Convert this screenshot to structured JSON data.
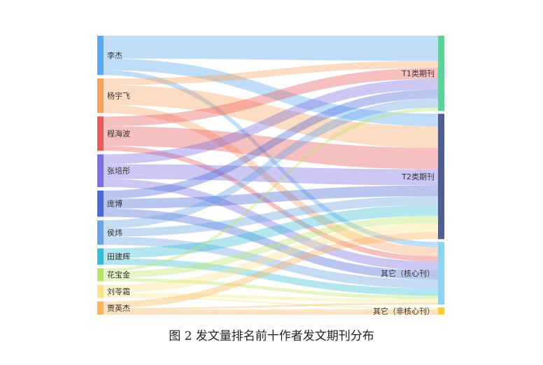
{
  "caption": "图 2  发文量排名前十作者发文期刊分布",
  "chart_data": {
    "type": "sankey",
    "sources": [
      {
        "name": "李杰",
        "color": "#5aa9f0"
      },
      {
        "name": "杨宇飞",
        "color": "#f6a25e"
      },
      {
        "name": "程海波",
        "color": "#ea5a5a"
      },
      {
        "name": "张培彤",
        "color": "#7a6ee0"
      },
      {
        "name": "庞博",
        "color": "#4a68d8"
      },
      {
        "name": "侯炜",
        "color": "#6aa2e6"
      },
      {
        "name": "田建辉",
        "color": "#36bcd6"
      },
      {
        "name": "花宝金",
        "color": "#bde46a"
      },
      {
        "name": "刘苓霜",
        "color": "#fbe48a"
      },
      {
        "name": "贾英杰",
        "color": "#fbb45a"
      }
    ],
    "targets": [
      {
        "name": "T1类期刊",
        "color": "#5ed19a"
      },
      {
        "name": "T2类期刊",
        "color": "#4f5e8e"
      },
      {
        "name": "其它（核心刊）",
        "color": "#8fd3f0"
      },
      {
        "name": "其它（非核心刊）",
        "color": "#fbcb3a"
      }
    ],
    "links": [
      {
        "source": "李杰",
        "target": "T1类期刊",
        "value": 14
      },
      {
        "source": "李杰",
        "target": "T2类期刊",
        "value": 7
      },
      {
        "source": "李杰",
        "target": "其它（核心刊）",
        "value": 3
      },
      {
        "source": "杨宇飞",
        "target": "T1类期刊",
        "value": 4
      },
      {
        "source": "杨宇飞",
        "target": "T2类期刊",
        "value": 12
      },
      {
        "source": "杨宇飞",
        "target": "其它（核心刊）",
        "value": 5
      },
      {
        "source": "程海波",
        "target": "T1类期刊",
        "value": 6
      },
      {
        "source": "程海波",
        "target": "T2类期刊",
        "value": 12
      },
      {
        "source": "程海波",
        "target": "其它（核心刊）",
        "value": 3
      },
      {
        "source": "张培彤",
        "target": "T1类期刊",
        "value": 6
      },
      {
        "source": "张培彤",
        "target": "T2类期刊",
        "value": 9
      },
      {
        "source": "张培彤",
        "target": "其它（核心刊）",
        "value": 5
      },
      {
        "source": "庞博",
        "target": "T1类期刊",
        "value": 5
      },
      {
        "source": "庞博",
        "target": "T2类期刊",
        "value": 6
      },
      {
        "source": "庞博",
        "target": "其它（核心刊）",
        "value": 5
      },
      {
        "source": "侯炜",
        "target": "T1类期刊",
        "value": 5
      },
      {
        "source": "侯炜",
        "target": "T2类期刊",
        "value": 5
      },
      {
        "source": "侯炜",
        "target": "其它（核心刊）",
        "value": 5
      },
      {
        "source": "田建辉",
        "target": "T2类期刊",
        "value": 6
      },
      {
        "source": "田建辉",
        "target": "其它（核心刊）",
        "value": 4
      },
      {
        "source": "花宝金",
        "target": "T1类期刊",
        "value": 2
      },
      {
        "source": "花宝金",
        "target": "T2类期刊",
        "value": 4
      },
      {
        "source": "花宝金",
        "target": "其它（核心刊）",
        "value": 2
      },
      {
        "source": "刘苓霜",
        "target": "T2类期刊",
        "value": 5
      },
      {
        "source": "刘苓霜",
        "target": "其它（核心刊）",
        "value": 2
      },
      {
        "source": "刘苓霜",
        "target": "其它（非核心刊）",
        "value": 1
      },
      {
        "source": "贾英杰",
        "target": "T2类期刊",
        "value": 4
      },
      {
        "source": "贾英杰",
        "target": "其它（核心刊）",
        "value": 1
      },
      {
        "source": "贾英杰",
        "target": "其它（非核心刊）",
        "value": 3
      }
    ]
  }
}
